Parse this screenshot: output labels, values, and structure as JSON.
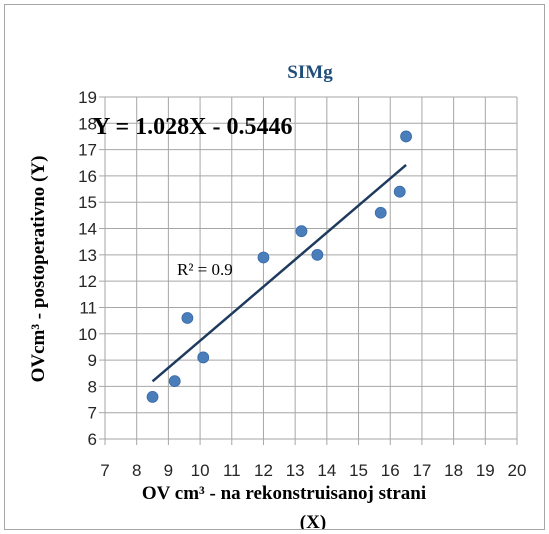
{
  "chart_data": {
    "type": "scatter",
    "title": "SIMg",
    "xlabel": "OV cm³ - na rekonstruisanoj strani",
    "xlabel_line2": "(X)",
    "ylabel": "OVcm³ - postoperativno   (Y)",
    "xlim": [
      7,
      20
    ],
    "ylim": [
      6,
      19
    ],
    "x_ticks": [
      7,
      8,
      9,
      10,
      11,
      12,
      13,
      14,
      15,
      16,
      17,
      18,
      19,
      20
    ],
    "y_ticks": [
      6,
      7,
      8,
      9,
      10,
      11,
      12,
      13,
      14,
      15,
      16,
      17,
      18,
      19
    ],
    "grid": true,
    "series": [
      {
        "points": [
          {
            "x": 8.5,
            "y": 7.6
          },
          {
            "x": 9.2,
            "y": 8.2
          },
          {
            "x": 9.6,
            "y": 10.6
          },
          {
            "x": 10.1,
            "y": 9.1
          },
          {
            "x": 12.0,
            "y": 12.9
          },
          {
            "x": 13.2,
            "y": 13.9
          },
          {
            "x": 13.7,
            "y": 13.0
          },
          {
            "x": 15.7,
            "y": 14.6
          },
          {
            "x": 16.3,
            "y": 15.4
          },
          {
            "x": 16.5,
            "y": 17.5
          }
        ]
      }
    ],
    "trendline": {
      "slope": 1.028,
      "intercept": -0.5446,
      "x_range": [
        8.5,
        16.5
      ],
      "equation_label": "Y = 1.028X - 0.5446",
      "r2_label": "R² = 0.9"
    },
    "colors": {
      "marker": "#4a7ebb",
      "trendline": "#1f3a5f",
      "title": "#1f4e79",
      "grid": "#a6a6a6"
    }
  }
}
